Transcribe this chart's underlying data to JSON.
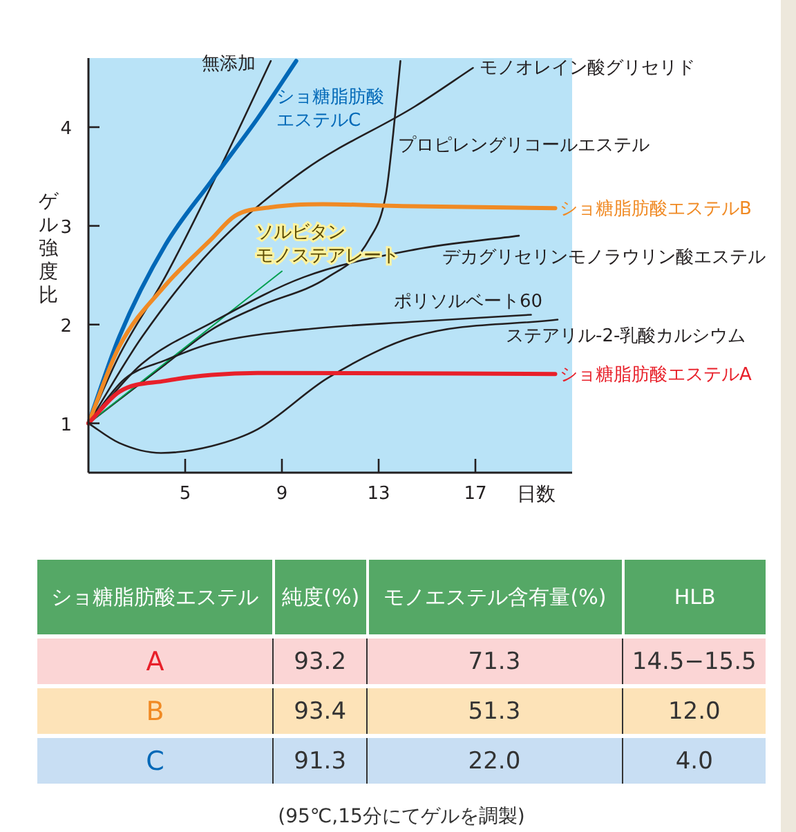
{
  "chart_data": [
    {
      "type": "line",
      "xlabel": "日数",
      "ylabel": "ゲル強度比",
      "xlim": [
        1,
        21
      ],
      "ylim": [
        0.5,
        4.7
      ],
      "xticks": [
        5,
        9,
        13,
        17
      ],
      "yticks": [
        1,
        2,
        3,
        4
      ],
      "grid": false,
      "legend": false,
      "line_style": "solid",
      "marker": "none",
      "series": [
        {
          "name": "無添加",
          "color": "#231f20",
          "x": [
            1,
            2.28,
            4.19,
            6.67,
            8.54
          ],
          "values": [
            1,
            1.69,
            2.49,
            3.7,
            4.67
          ]
        },
        {
          "name": "ショ糖脂肪酸エステルC",
          "color": "#0068b7",
          "x": [
            1,
            2.28,
            4.19,
            6.1,
            8.0,
            9.59
          ],
          "values": [
            1,
            1.88,
            2.81,
            3.46,
            4.09,
            4.67
          ]
        },
        {
          "name": "モノオレイン酸グリセリド",
          "color": "#231f20",
          "x": [
            1,
            3.23,
            6.1,
            9.9,
            14.5,
            16.9
          ],
          "values": [
            1,
            1.88,
            2.76,
            3.56,
            4.21,
            4.6
          ]
        },
        {
          "name": "プロピレングリコールエステル",
          "color": "#231f20",
          "x": [
            1,
            4.19,
            6.1,
            8.0,
            10.9,
            12.6,
            13.3,
            13.6,
            13.9
          ],
          "values": [
            1,
            1.6,
            1.95,
            2.18,
            2.48,
            2.86,
            3.32,
            3.93,
            4.67
          ]
        },
        {
          "name": "ショ糖脂肪酸エステルB",
          "color": "#f08a24",
          "x": [
            1,
            2.28,
            4.19,
            6.1,
            7.05,
            8.58,
            10.7,
            14,
            20.3
          ],
          "values": [
            1,
            1.78,
            2.4,
            2.87,
            3.1,
            3.19,
            3.22,
            3.2,
            3.18
          ]
        },
        {
          "name": "ソルビタンモノステアレート",
          "color": "#00a050",
          "x": [
            1,
            9.0
          ],
          "values": [
            1,
            2.54
          ]
        },
        {
          "name": "デカグリセリンモノラウリン酸エステル",
          "color": "#231f20",
          "x": [
            1,
            3.2,
            6.1,
            9.9,
            14.5,
            18.8
          ],
          "values": [
            1,
            1.6,
            2.02,
            2.48,
            2.76,
            2.9
          ]
        },
        {
          "name": "ポリソルベート60",
          "color": "#231f20",
          "x": [
            1,
            2.5,
            4.19,
            6.1,
            9.9,
            14.5,
            19.3
          ],
          "values": [
            1,
            1.45,
            1.64,
            1.81,
            1.95,
            2.03,
            2.1
          ]
        },
        {
          "name": "ステアリル-2-乳酸カルシウム",
          "color": "#231f20",
          "x": [
            1,
            2.28,
            4.0,
            6.1,
            8.0,
            10.9,
            14.5,
            20.4
          ],
          "values": [
            1,
            0.8,
            0.7,
            0.77,
            0.94,
            1.46,
            1.88,
            2.05
          ]
        },
        {
          "name": "ショ糖脂肪酸エステルA",
          "color": "#e8202a",
          "x": [
            1,
            2.28,
            4.19,
            6.1,
            8.0,
            20.3
          ],
          "values": [
            1,
            1.32,
            1.43,
            1.49,
            1.51,
            1.5
          ]
        }
      ]
    },
    {
      "type": "other",
      "categories": [
        "ショ糖脂肪酸エステル",
        "純度(%)",
        "モノエステル含有量(%)",
        "HLB"
      ],
      "y_categories": [
        "A",
        "B",
        "C"
      ],
      "cell_labels": [
        [
          "93.2",
          "71.3",
          "14.5−15.5"
        ],
        [
          "93.4",
          "51.3",
          "12.0"
        ],
        [
          "91.3",
          "22.0",
          "4.0"
        ]
      ],
      "annotations": [
        "(95℃,15分にてゲルを調製)"
      ]
    }
  ]
}
